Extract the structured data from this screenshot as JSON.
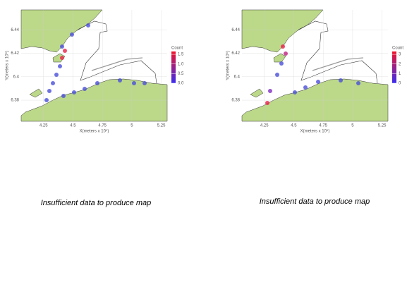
{
  "maps": [
    {
      "xlabel": "X(meters x 10⁵)",
      "ylabel": "Y(meters x 10⁶)",
      "xlim": [
        4.06,
        5.3
      ],
      "ylim": [
        6.362,
        6.457
      ],
      "xticks": [
        4.25,
        4.5,
        4.75,
        5,
        5.25
      ],
      "yticks": [
        6.44,
        6.42,
        6.4,
        6.38
      ],
      "legend": {
        "title": "Count",
        "clim": [
          0,
          1.65
        ],
        "ticks": [
          1.5,
          {
            "value": 1,
            "label": "1.0"
          },
          0.5,
          {
            "value": 0,
            "label": "0.0"
          }
        ]
      }
    },
    {
      "xlabel": "X(meters x 10⁵)",
      "ylabel": "Y(meters x 10⁶)",
      "xlim": [
        4.06,
        5.3
      ],
      "ylim": [
        6.362,
        6.457
      ],
      "xticks": [
        4.25,
        4.5,
        4.75,
        5,
        5.25
      ],
      "yticks": [
        6.44,
        6.42,
        6.4,
        6.38
      ],
      "legend": {
        "title": "Count",
        "clim": [
          0,
          3.3
        ],
        "ticks": [
          3,
          2,
          1,
          0
        ]
      }
    }
  ],
  "messages": [
    "Insufficient data to produce map",
    "Insufficient data to produce map"
  ]
}
